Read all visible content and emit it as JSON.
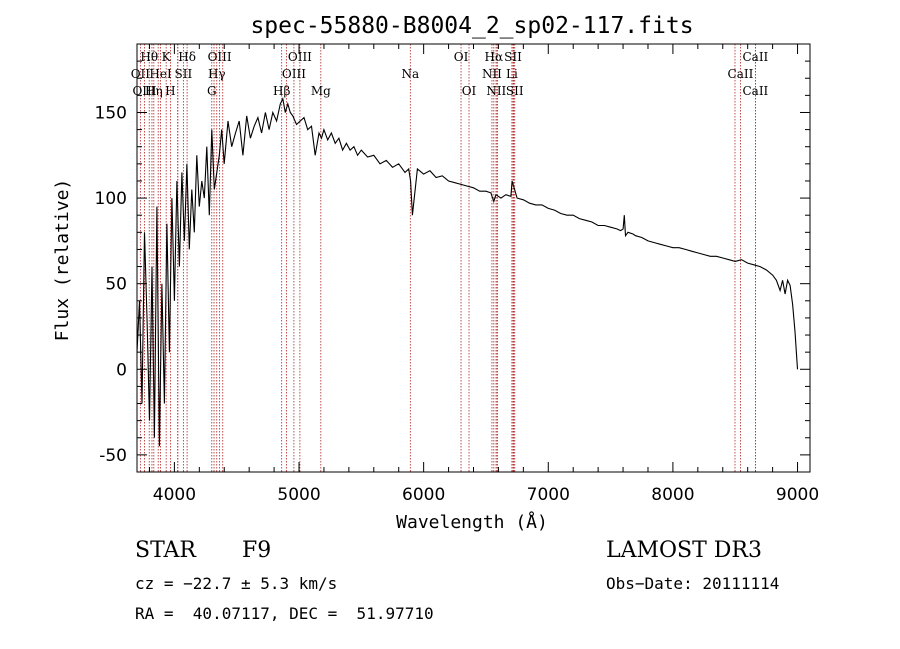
{
  "chart_data": {
    "type": "line",
    "title": "spec-55880-B8004_2_sp02-117.fits",
    "xlabel": "Wavelength (Å)",
    "ylabel": "Flux (relative)",
    "xlim": [
      3700,
      9100
    ],
    "ylim": [
      -60,
      190
    ],
    "xticks": [
      4000,
      5000,
      6000,
      7000,
      8000,
      9000
    ],
    "yticks": [
      -50,
      0,
      50,
      100,
      150
    ],
    "series": [
      {
        "name": "flux",
        "x": [
          3700,
          3720,
          3740,
          3760,
          3780,
          3800,
          3820,
          3840,
          3860,
          3880,
          3900,
          3920,
          3940,
          3960,
          3980,
          4000,
          4020,
          4040,
          4060,
          4080,
          4100,
          4120,
          4140,
          4160,
          4180,
          4200,
          4220,
          4240,
          4260,
          4280,
          4300,
          4320,
          4340,
          4360,
          4380,
          4400,
          4430,
          4460,
          4490,
          4520,
          4550,
          4580,
          4610,
          4640,
          4670,
          4700,
          4730,
          4760,
          4790,
          4820,
          4850,
          4870,
          4890,
          4910,
          4930,
          4950,
          4980,
          5010,
          5040,
          5070,
          5100,
          5130,
          5160,
          5180,
          5200,
          5230,
          5260,
          5290,
          5320,
          5350,
          5380,
          5410,
          5440,
          5470,
          5500,
          5550,
          5600,
          5650,
          5700,
          5750,
          5800,
          5850,
          5880,
          5895,
          5910,
          5950,
          6000,
          6050,
          6100,
          6150,
          6200,
          6250,
          6300,
          6350,
          6400,
          6450,
          6500,
          6540,
          6563,
          6580,
          6620,
          6660,
          6700,
          6710,
          6750,
          6800,
          6850,
          6900,
          6950,
          7000,
          7050,
          7100,
          7150,
          7200,
          7250,
          7300,
          7350,
          7400,
          7450,
          7500,
          7550,
          7580,
          7600,
          7610,
          7620,
          7640,
          7680,
          7700,
          7750,
          7800,
          7850,
          7900,
          7950,
          8000,
          8050,
          8100,
          8150,
          8200,
          8250,
          8300,
          8350,
          8400,
          8450,
          8500,
          8550,
          8600,
          8650,
          8700,
          8750,
          8800,
          8830,
          8860,
          8880,
          8900,
          8920,
          8940,
          8960,
          8980,
          9000
        ],
        "values": [
          10,
          40,
          -20,
          80,
          30,
          -30,
          60,
          -40,
          95,
          -45,
          50,
          -20,
          85,
          10,
          100,
          40,
          110,
          60,
          115,
          75,
          120,
          70,
          105,
          80,
          125,
          95,
          110,
          100,
          130,
          90,
          140,
          105,
          115,
          125,
          140,
          120,
          145,
          130,
          138,
          145,
          125,
          148,
          135,
          142,
          147,
          138,
          150,
          140,
          150,
          145,
          155,
          158,
          150,
          155,
          150,
          148,
          143,
          145,
          147,
          140,
          142,
          125,
          138,
          135,
          140,
          134,
          138,
          132,
          135,
          128,
          132,
          128,
          130,
          125,
          128,
          124,
          125,
          120,
          122,
          118,
          120,
          115,
          117,
          110,
          90,
          117,
          114,
          116,
          112,
          113,
          110,
          109,
          108,
          107,
          106,
          104,
          104,
          103,
          98,
          102,
          100,
          102,
          101,
          110,
          100,
          99,
          97,
          96,
          96,
          94,
          93,
          91,
          90,
          90,
          88,
          87,
          86,
          84,
          84,
          83,
          82,
          81,
          82,
          90,
          78,
          80,
          79,
          78,
          77,
          75,
          74,
          73,
          72,
          71,
          71,
          70,
          69,
          68,
          67,
          66,
          66,
          65,
          64,
          63,
          64,
          62,
          61,
          60,
          58,
          55,
          52,
          46,
          52,
          44,
          52,
          49,
          38,
          22,
          0
        ]
      }
    ],
    "lines_top": [
      {
        "label": "Hθ",
        "x": 3798
      },
      {
        "label": "K",
        "x": 3934
      },
      {
        "label": "Hδ",
        "x": 4102
      },
      {
        "label": "OIII",
        "x": 4363
      },
      {
        "label": "OIII",
        "x": 5007
      },
      {
        "label": "OI",
        "x": 6300
      },
      {
        "label": "Hα",
        "x": 6563
      },
      {
        "label": "SII",
        "x": 6717
      },
      {
        "label": "CaII",
        "x": 8662
      }
    ],
    "lines_mid": [
      {
        "label": "OII",
        "x": 3727
      },
      {
        "label": "HeI",
        "x": 3889
      },
      {
        "label": "SII",
        "x": 4072
      },
      {
        "label": "Hγ",
        "x": 4340
      },
      {
        "label": "OIII",
        "x": 4959
      },
      {
        "label": "Na",
        "x": 5893
      },
      {
        "label": "NII",
        "x": 6548
      },
      {
        "label": "Li",
        "x": 6708
      },
      {
        "label": "CaII",
        "x": 8542
      }
    ],
    "lines_low": [
      {
        "label": "OIII",
        "x": 3760
      },
      {
        "label": "Hη",
        "x": 3835
      },
      {
        "label": "H",
        "x": 3968
      },
      {
        "label": "G",
        "x": 4300
      },
      {
        "label": "Hβ",
        "x": 4861
      },
      {
        "label": "Mg",
        "x": 5175
      },
      {
        "label": "OI",
        "x": 6364
      },
      {
        "label": "NII",
        "x": 6583
      },
      {
        "label": "SII",
        "x": 6731
      },
      {
        "label": "CaII",
        "x": 8662
      }
    ],
    "extra_line_x": [
      3820,
      3870,
      4028,
      4026,
      4318,
      4388,
      4900,
      6581,
      6593,
      6723,
      8498
    ]
  },
  "info": {
    "object_class": "STAR",
    "subclass": "F9",
    "survey": "LAMOST DR3",
    "cz": "cz = −22.7 ± 5.3 km/s",
    "obs_date": "Obs−Date: 20111114",
    "coords": "RA =  40.07117, DEC =  51.97710"
  },
  "colors": {
    "line_marker": "#b22222",
    "spectrum": "#000000",
    "axis": "#000000"
  }
}
